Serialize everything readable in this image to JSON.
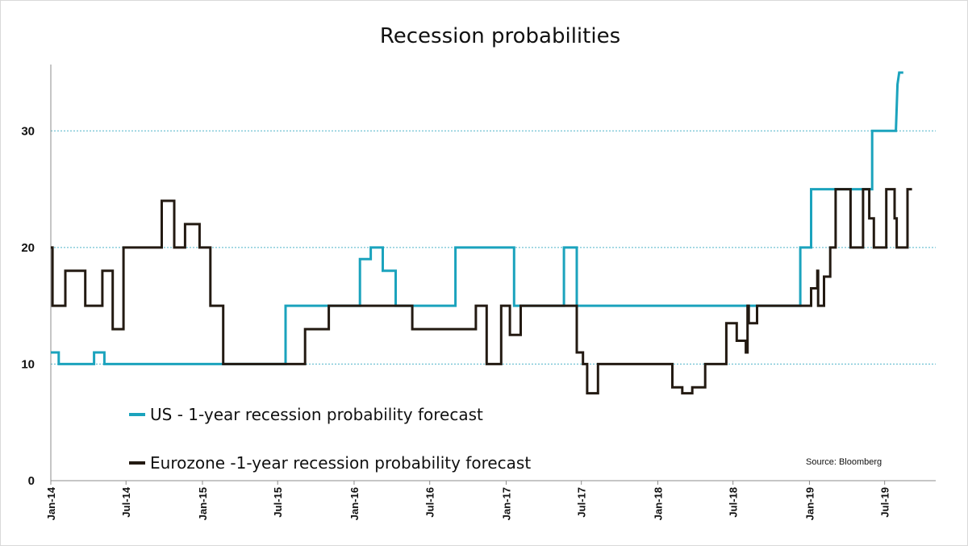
{
  "chart_data": {
    "type": "line",
    "title": "Recession probabilities",
    "xlabel": "",
    "ylabel": "",
    "xlim": [
      "2014-01-01",
      "2019-11-01"
    ],
    "ylim": [
      0,
      35
    ],
    "yticks": [
      0,
      10,
      20,
      30
    ],
    "gridlines_y": [
      10,
      20,
      30
    ],
    "xticks": [
      {
        "date": "2014-01-01",
        "label": "Jan-14"
      },
      {
        "date": "2014-07-01",
        "label": "Jul-14"
      },
      {
        "date": "2015-01-01",
        "label": "Jan-15"
      },
      {
        "date": "2015-07-01",
        "label": "Jul-15"
      },
      {
        "date": "2016-01-01",
        "label": "Jan-16"
      },
      {
        "date": "2016-07-01",
        "label": "Jul-16"
      },
      {
        "date": "2017-01-01",
        "label": "Jan-17"
      },
      {
        "date": "2017-07-01",
        "label": "Jul-17"
      },
      {
        "date": "2018-01-01",
        "label": "Jan-18"
      },
      {
        "date": "2018-07-01",
        "label": "Jul-18"
      },
      {
        "date": "2019-01-01",
        "label": "Jan-19"
      },
      {
        "date": "2019-07-01",
        "label": "Jul-19"
      }
    ],
    "legend_placement": "bottom-left",
    "source": "Source: Bloomberg",
    "series": [
      {
        "name": "US - 1-year recession probability forecast",
        "color": "#1ba3bd",
        "points": [
          [
            "2014-01-01",
            11
          ],
          [
            "2014-01-20",
            11
          ],
          [
            "2014-01-20",
            10
          ],
          [
            "2014-04-15",
            10
          ],
          [
            "2014-04-15",
            11
          ],
          [
            "2014-05-10",
            11
          ],
          [
            "2014-05-10",
            10
          ],
          [
            "2015-07-20",
            10
          ],
          [
            "2015-07-20",
            15
          ],
          [
            "2016-01-15",
            15
          ],
          [
            "2016-01-15",
            19
          ],
          [
            "2016-02-10",
            19
          ],
          [
            "2016-02-10",
            20
          ],
          [
            "2016-03-10",
            20
          ],
          [
            "2016-03-10",
            18
          ],
          [
            "2016-04-10",
            18
          ],
          [
            "2016-04-10",
            15
          ],
          [
            "2016-09-01",
            15
          ],
          [
            "2016-09-01",
            20
          ],
          [
            "2017-01-20",
            20
          ],
          [
            "2017-01-20",
            15
          ],
          [
            "2017-05-20",
            15
          ],
          [
            "2017-05-20",
            20
          ],
          [
            "2017-06-20",
            20
          ],
          [
            "2017-06-20",
            15
          ],
          [
            "2018-12-10",
            15
          ],
          [
            "2018-12-10",
            20
          ],
          [
            "2019-01-05",
            20
          ],
          [
            "2019-01-05",
            25
          ],
          [
            "2019-06-01",
            25
          ],
          [
            "2019-06-01",
            30
          ],
          [
            "2019-07-28",
            30
          ],
          [
            "2019-08-01",
            34
          ],
          [
            "2019-08-05",
            35
          ],
          [
            "2019-08-15",
            35
          ]
        ]
      },
      {
        "name": "Eurozone -1-year recession probability forecast",
        "color": "#231a12",
        "points": [
          [
            "2014-01-01",
            20
          ],
          [
            "2014-01-05",
            20
          ],
          [
            "2014-01-05",
            15
          ],
          [
            "2014-02-05",
            15
          ],
          [
            "2014-02-05",
            18
          ],
          [
            "2014-03-25",
            18
          ],
          [
            "2014-03-25",
            15
          ],
          [
            "2014-05-05",
            15
          ],
          [
            "2014-05-05",
            18
          ],
          [
            "2014-05-30",
            18
          ],
          [
            "2014-05-30",
            13
          ],
          [
            "2014-06-25",
            13
          ],
          [
            "2014-06-25",
            20
          ],
          [
            "2014-09-25",
            20
          ],
          [
            "2014-09-25",
            24
          ],
          [
            "2014-10-25",
            24
          ],
          [
            "2014-10-25",
            20
          ],
          [
            "2014-11-20",
            20
          ],
          [
            "2014-11-20",
            22
          ],
          [
            "2014-12-25",
            22
          ],
          [
            "2014-12-25",
            20
          ],
          [
            "2015-01-20",
            20
          ],
          [
            "2015-01-20",
            15
          ],
          [
            "2015-02-20",
            15
          ],
          [
            "2015-02-20",
            10
          ],
          [
            "2015-09-05",
            10
          ],
          [
            "2015-09-05",
            13
          ],
          [
            "2015-11-01",
            13
          ],
          [
            "2015-11-01",
            15
          ],
          [
            "2016-05-20",
            15
          ],
          [
            "2016-05-20",
            13
          ],
          [
            "2016-10-20",
            13
          ],
          [
            "2016-10-20",
            15
          ],
          [
            "2016-11-15",
            15
          ],
          [
            "2016-11-15",
            10
          ],
          [
            "2016-12-20",
            10
          ],
          [
            "2016-12-20",
            15
          ],
          [
            "2017-01-10",
            15
          ],
          [
            "2017-01-10",
            12.5
          ],
          [
            "2017-02-05",
            12.5
          ],
          [
            "2017-02-05",
            15
          ],
          [
            "2017-06-20",
            15
          ],
          [
            "2017-06-20",
            11
          ],
          [
            "2017-07-05",
            11
          ],
          [
            "2017-07-05",
            10
          ],
          [
            "2017-07-15",
            10
          ],
          [
            "2017-07-15",
            7.5
          ],
          [
            "2017-08-10",
            7.5
          ],
          [
            "2017-08-10",
            10
          ],
          [
            "2018-02-05",
            10
          ],
          [
            "2018-02-05",
            8
          ],
          [
            "2018-03-01",
            8
          ],
          [
            "2018-03-01",
            7.5
          ],
          [
            "2018-03-25",
            7.5
          ],
          [
            "2018-03-25",
            8
          ],
          [
            "2018-04-25",
            8
          ],
          [
            "2018-04-25",
            10
          ],
          [
            "2018-06-15",
            10
          ],
          [
            "2018-06-15",
            13.5
          ],
          [
            "2018-07-10",
            13.5
          ],
          [
            "2018-07-10",
            12
          ],
          [
            "2018-08-01",
            12
          ],
          [
            "2018-08-01",
            11
          ],
          [
            "2018-08-05",
            11
          ],
          [
            "2018-08-05",
            15
          ],
          [
            "2018-08-08",
            15
          ],
          [
            "2018-08-08",
            13.5
          ],
          [
            "2018-08-28",
            13.5
          ],
          [
            "2018-08-28",
            15
          ],
          [
            "2019-01-05",
            15
          ],
          [
            "2019-01-05",
            16.5
          ],
          [
            "2019-01-20",
            16.5
          ],
          [
            "2019-01-20",
            18
          ],
          [
            "2019-01-22",
            18
          ],
          [
            "2019-01-22",
            15
          ],
          [
            "2019-02-05",
            15
          ],
          [
            "2019-02-05",
            17.5
          ],
          [
            "2019-02-20",
            17.5
          ],
          [
            "2019-02-20",
            20
          ],
          [
            "2019-03-05",
            20
          ],
          [
            "2019-03-05",
            25
          ],
          [
            "2019-04-10",
            25
          ],
          [
            "2019-04-10",
            20
          ],
          [
            "2019-05-10",
            20
          ],
          [
            "2019-05-10",
            25
          ],
          [
            "2019-05-25",
            25
          ],
          [
            "2019-05-25",
            22.5
          ],
          [
            "2019-06-05",
            22.5
          ],
          [
            "2019-06-05",
            20
          ],
          [
            "2019-07-05",
            20
          ],
          [
            "2019-07-05",
            25
          ],
          [
            "2019-07-25",
            25
          ],
          [
            "2019-07-25",
            22.5
          ],
          [
            "2019-07-30",
            22.5
          ],
          [
            "2019-07-30",
            20
          ],
          [
            "2019-08-25",
            20
          ],
          [
            "2019-08-25",
            25
          ],
          [
            "2019-09-05",
            25
          ]
        ]
      }
    ]
  }
}
